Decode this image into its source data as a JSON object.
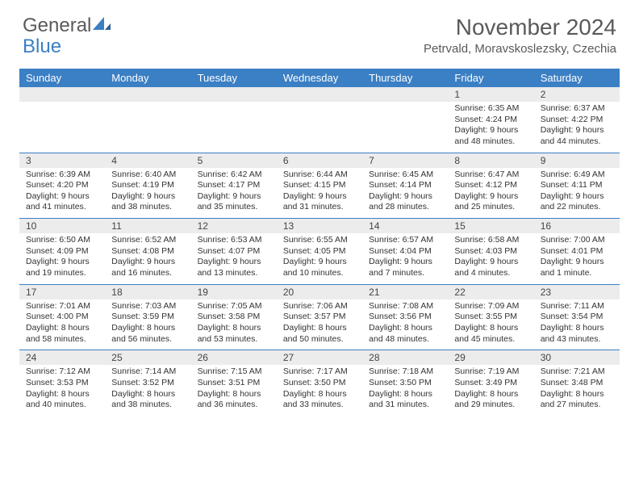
{
  "logo": {
    "text1": "General",
    "text2": "Blue"
  },
  "title": {
    "month": "November 2024",
    "location": "Petrvald, Moravskoslezsky, Czechia"
  },
  "style": {
    "header_bg": "#3b7fc4",
    "header_fg": "#ffffff",
    "daynum_bg": "#ececec",
    "border_color": "#3b7fc4",
    "text_color": "#333333",
    "page_bg": "#ffffff",
    "title_color": "#5a5a5a",
    "logo_blue": "#3b7fc4",
    "cell_fontsize": "10.5px",
    "head_fontsize": "13px",
    "title_fontsize": "28px",
    "loc_fontsize": "15px"
  },
  "columns": [
    "Sunday",
    "Monday",
    "Tuesday",
    "Wednesday",
    "Thursday",
    "Friday",
    "Saturday"
  ],
  "weeks": [
    {
      "nums": [
        "",
        "",
        "",
        "",
        "",
        "1",
        "2"
      ],
      "cells": [
        null,
        null,
        null,
        null,
        null,
        {
          "sunrise": "Sunrise: 6:35 AM",
          "sunset": "Sunset: 4:24 PM",
          "day1": "Daylight: 9 hours",
          "day2": "and 48 minutes."
        },
        {
          "sunrise": "Sunrise: 6:37 AM",
          "sunset": "Sunset: 4:22 PM",
          "day1": "Daylight: 9 hours",
          "day2": "and 44 minutes."
        }
      ]
    },
    {
      "nums": [
        "3",
        "4",
        "5",
        "6",
        "7",
        "8",
        "9"
      ],
      "cells": [
        {
          "sunrise": "Sunrise: 6:39 AM",
          "sunset": "Sunset: 4:20 PM",
          "day1": "Daylight: 9 hours",
          "day2": "and 41 minutes."
        },
        {
          "sunrise": "Sunrise: 6:40 AM",
          "sunset": "Sunset: 4:19 PM",
          "day1": "Daylight: 9 hours",
          "day2": "and 38 minutes."
        },
        {
          "sunrise": "Sunrise: 6:42 AM",
          "sunset": "Sunset: 4:17 PM",
          "day1": "Daylight: 9 hours",
          "day2": "and 35 minutes."
        },
        {
          "sunrise": "Sunrise: 6:44 AM",
          "sunset": "Sunset: 4:15 PM",
          "day1": "Daylight: 9 hours",
          "day2": "and 31 minutes."
        },
        {
          "sunrise": "Sunrise: 6:45 AM",
          "sunset": "Sunset: 4:14 PM",
          "day1": "Daylight: 9 hours",
          "day2": "and 28 minutes."
        },
        {
          "sunrise": "Sunrise: 6:47 AM",
          "sunset": "Sunset: 4:12 PM",
          "day1": "Daylight: 9 hours",
          "day2": "and 25 minutes."
        },
        {
          "sunrise": "Sunrise: 6:49 AM",
          "sunset": "Sunset: 4:11 PM",
          "day1": "Daylight: 9 hours",
          "day2": "and 22 minutes."
        }
      ]
    },
    {
      "nums": [
        "10",
        "11",
        "12",
        "13",
        "14",
        "15",
        "16"
      ],
      "cells": [
        {
          "sunrise": "Sunrise: 6:50 AM",
          "sunset": "Sunset: 4:09 PM",
          "day1": "Daylight: 9 hours",
          "day2": "and 19 minutes."
        },
        {
          "sunrise": "Sunrise: 6:52 AM",
          "sunset": "Sunset: 4:08 PM",
          "day1": "Daylight: 9 hours",
          "day2": "and 16 minutes."
        },
        {
          "sunrise": "Sunrise: 6:53 AM",
          "sunset": "Sunset: 4:07 PM",
          "day1": "Daylight: 9 hours",
          "day2": "and 13 minutes."
        },
        {
          "sunrise": "Sunrise: 6:55 AM",
          "sunset": "Sunset: 4:05 PM",
          "day1": "Daylight: 9 hours",
          "day2": "and 10 minutes."
        },
        {
          "sunrise": "Sunrise: 6:57 AM",
          "sunset": "Sunset: 4:04 PM",
          "day1": "Daylight: 9 hours",
          "day2": "and 7 minutes."
        },
        {
          "sunrise": "Sunrise: 6:58 AM",
          "sunset": "Sunset: 4:03 PM",
          "day1": "Daylight: 9 hours",
          "day2": "and 4 minutes."
        },
        {
          "sunrise": "Sunrise: 7:00 AM",
          "sunset": "Sunset: 4:01 PM",
          "day1": "Daylight: 9 hours",
          "day2": "and 1 minute."
        }
      ]
    },
    {
      "nums": [
        "17",
        "18",
        "19",
        "20",
        "21",
        "22",
        "23"
      ],
      "cells": [
        {
          "sunrise": "Sunrise: 7:01 AM",
          "sunset": "Sunset: 4:00 PM",
          "day1": "Daylight: 8 hours",
          "day2": "and 58 minutes."
        },
        {
          "sunrise": "Sunrise: 7:03 AM",
          "sunset": "Sunset: 3:59 PM",
          "day1": "Daylight: 8 hours",
          "day2": "and 56 minutes."
        },
        {
          "sunrise": "Sunrise: 7:05 AM",
          "sunset": "Sunset: 3:58 PM",
          "day1": "Daylight: 8 hours",
          "day2": "and 53 minutes."
        },
        {
          "sunrise": "Sunrise: 7:06 AM",
          "sunset": "Sunset: 3:57 PM",
          "day1": "Daylight: 8 hours",
          "day2": "and 50 minutes."
        },
        {
          "sunrise": "Sunrise: 7:08 AM",
          "sunset": "Sunset: 3:56 PM",
          "day1": "Daylight: 8 hours",
          "day2": "and 48 minutes."
        },
        {
          "sunrise": "Sunrise: 7:09 AM",
          "sunset": "Sunset: 3:55 PM",
          "day1": "Daylight: 8 hours",
          "day2": "and 45 minutes."
        },
        {
          "sunrise": "Sunrise: 7:11 AM",
          "sunset": "Sunset: 3:54 PM",
          "day1": "Daylight: 8 hours",
          "day2": "and 43 minutes."
        }
      ]
    },
    {
      "nums": [
        "24",
        "25",
        "26",
        "27",
        "28",
        "29",
        "30"
      ],
      "cells": [
        {
          "sunrise": "Sunrise: 7:12 AM",
          "sunset": "Sunset: 3:53 PM",
          "day1": "Daylight: 8 hours",
          "day2": "and 40 minutes."
        },
        {
          "sunrise": "Sunrise: 7:14 AM",
          "sunset": "Sunset: 3:52 PM",
          "day1": "Daylight: 8 hours",
          "day2": "and 38 minutes."
        },
        {
          "sunrise": "Sunrise: 7:15 AM",
          "sunset": "Sunset: 3:51 PM",
          "day1": "Daylight: 8 hours",
          "day2": "and 36 minutes."
        },
        {
          "sunrise": "Sunrise: 7:17 AM",
          "sunset": "Sunset: 3:50 PM",
          "day1": "Daylight: 8 hours",
          "day2": "and 33 minutes."
        },
        {
          "sunrise": "Sunrise: 7:18 AM",
          "sunset": "Sunset: 3:50 PM",
          "day1": "Daylight: 8 hours",
          "day2": "and 31 minutes."
        },
        {
          "sunrise": "Sunrise: 7:19 AM",
          "sunset": "Sunset: 3:49 PM",
          "day1": "Daylight: 8 hours",
          "day2": "and 29 minutes."
        },
        {
          "sunrise": "Sunrise: 7:21 AM",
          "sunset": "Sunset: 3:48 PM",
          "day1": "Daylight: 8 hours",
          "day2": "and 27 minutes."
        }
      ]
    }
  ]
}
